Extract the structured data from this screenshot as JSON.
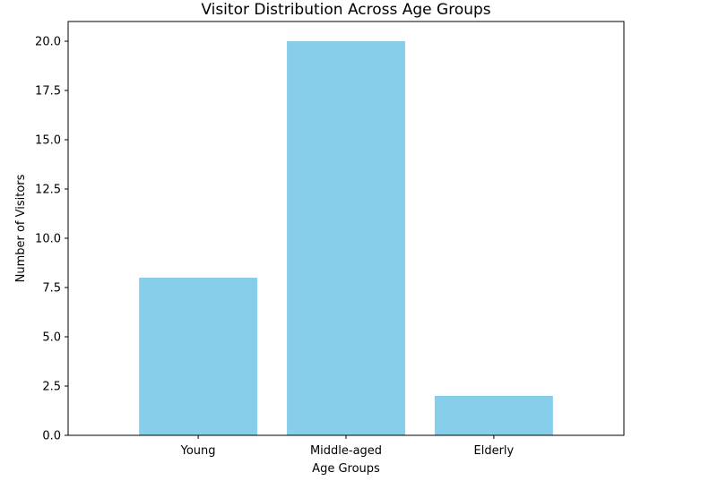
{
  "chart_data": {
    "type": "bar",
    "title": "Visitor Distribution Across Age Groups",
    "xlabel": "Age Groups",
    "ylabel": "Number of Visitors",
    "categories": [
      "Young",
      "Middle-aged",
      "Elderly"
    ],
    "values": [
      8,
      20,
      2
    ],
    "ylim": [
      0,
      21
    ],
    "yticks": [
      "0.0",
      "2.5",
      "5.0",
      "7.5",
      "10.0",
      "12.5",
      "15.0",
      "17.5",
      "20.0"
    ],
    "grid": false,
    "bar_color": "#87CEEB"
  }
}
